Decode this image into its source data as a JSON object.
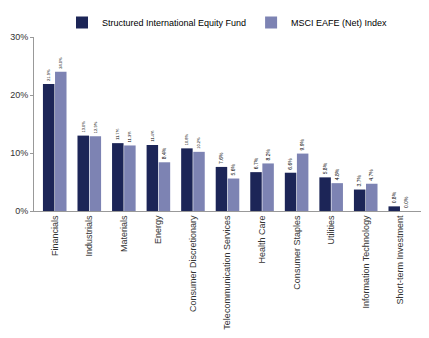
{
  "chart_data": {
    "type": "bar",
    "categories": [
      "Financials",
      "Industrials",
      "Materials",
      "Energy",
      "Consumer Discretionary",
      "Telecommunication Services",
      "Health Care",
      "Consumer Staples",
      "Utilities",
      "Information Technology",
      "Short-term Investment"
    ],
    "series": [
      {
        "name": "Structured International Equity Fund",
        "color": "#1c2557",
        "values": [
          21.9,
          13.0,
          11.7,
          11.4,
          10.8,
          7.6,
          6.7,
          6.6,
          5.8,
          3.7,
          0.8
        ],
        "value_labels": [
          "21.9%",
          "13.0%",
          "11.7%",
          "11.4%",
          "10.8%",
          "7.6%",
          "6.7%",
          "6.6%",
          "5.8%",
          "3.7%",
          "0.8%"
        ]
      },
      {
        "name": "MSCI EAFE (Net) Index",
        "color": "#7d83b3",
        "values": [
          24.0,
          12.9,
          11.3,
          8.4,
          10.2,
          5.6,
          8.2,
          9.9,
          4.8,
          4.7,
          0.0
        ],
        "value_labels": [
          "24.0%",
          "12.9%",
          "11.3%",
          "8.4%",
          "10.2%",
          "5.6%",
          "8.2%",
          "9.9%",
          "4.8%",
          "4.7%",
          "0.0%"
        ]
      }
    ],
    "ylim": [
      0,
      30
    ],
    "yticks": [
      {
        "value": 0,
        "label": "0%"
      },
      {
        "value": 10,
        "label": "10%"
      },
      {
        "value": 20,
        "label": "20%"
      },
      {
        "value": 30,
        "label": "30%"
      }
    ],
    "grid": false,
    "legend": "top",
    "data_labels": true
  }
}
